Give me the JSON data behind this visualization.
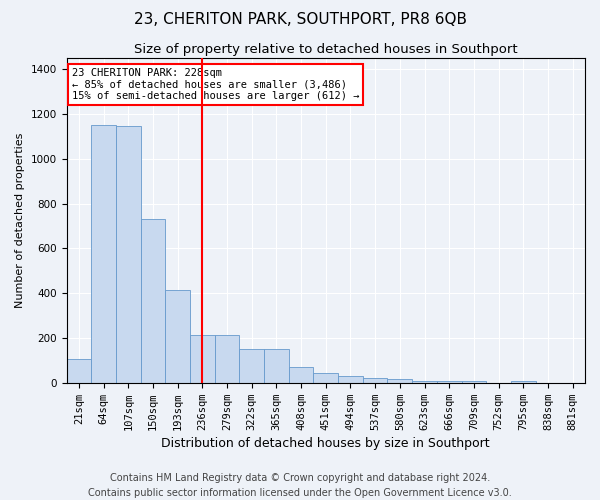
{
  "title": "23, CHERITON PARK, SOUTHPORT, PR8 6QB",
  "subtitle": "Size of property relative to detached houses in Southport",
  "xlabel": "Distribution of detached houses by size in Southport",
  "ylabel": "Number of detached properties",
  "categories": [
    "21sqm",
    "64sqm",
    "107sqm",
    "150sqm",
    "193sqm",
    "236sqm",
    "279sqm",
    "322sqm",
    "365sqm",
    "408sqm",
    "451sqm",
    "494sqm",
    "537sqm",
    "580sqm",
    "623sqm",
    "666sqm",
    "709sqm",
    "752sqm",
    "795sqm",
    "838sqm",
    "881sqm"
  ],
  "values": [
    107,
    1150,
    1145,
    730,
    415,
    215,
    215,
    150,
    150,
    70,
    45,
    30,
    20,
    15,
    10,
    10,
    10,
    0,
    10,
    0,
    0
  ],
  "bar_color": "#C8D9EF",
  "bar_edge_color": "#6699CC",
  "vline_x": 5.0,
  "vline_color": "red",
  "annotation_text": "23 CHERITON PARK: 228sqm\n← 85% of detached houses are smaller (3,486)\n15% of semi-detached houses are larger (612) →",
  "annotation_box_color": "white",
  "annotation_box_edge_color": "red",
  "ylim": [
    0,
    1450
  ],
  "yticks": [
    0,
    200,
    400,
    600,
    800,
    1000,
    1200,
    1400
  ],
  "footer_line1": "Contains HM Land Registry data © Crown copyright and database right 2024.",
  "footer_line2": "Contains public sector information licensed under the Open Government Licence v3.0.",
  "bg_color": "#EEF2F8",
  "plot_bg_color": "#EEF2F8",
  "title_fontsize": 11,
  "subtitle_fontsize": 9.5,
  "ylabel_fontsize": 8,
  "xlabel_fontsize": 9,
  "tick_fontsize": 7.5,
  "footer_fontsize": 7,
  "annot_fontsize": 7.5
}
